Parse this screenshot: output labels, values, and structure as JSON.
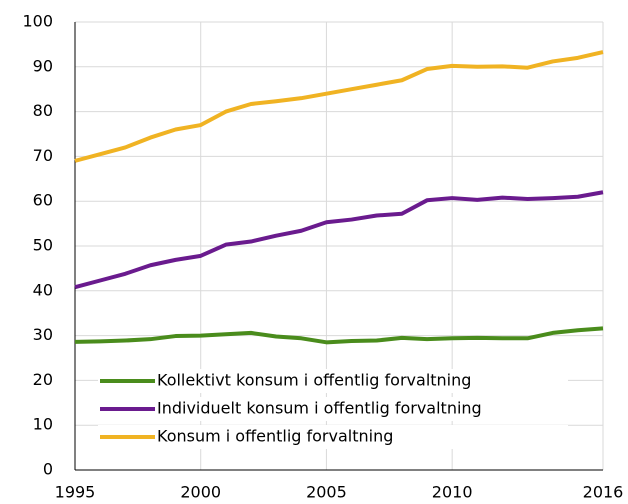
{
  "chart_data": {
    "type": "line",
    "x": [
      1995,
      1996,
      1997,
      1998,
      1999,
      2000,
      2001,
      2002,
      2003,
      2004,
      2005,
      2006,
      2007,
      2008,
      2009,
      2010,
      2011,
      2012,
      2013,
      2014,
      2015,
      2016
    ],
    "series": [
      {
        "name": "Kollektivt konsum i offentlig forvaltning",
        "color": "#4a8c1c",
        "values": [
          28.6,
          28.7,
          28.9,
          29.2,
          29.9,
          30,
          30.3,
          30.6,
          29.8,
          29.4,
          28.5,
          28.8,
          28.9,
          29.5,
          29.2,
          29.4,
          29.5,
          29.4,
          29.4,
          30.6,
          31.2,
          31.6
        ]
      },
      {
        "name": "Individuelt konsum i offentlig forvaltning",
        "color": "#6a1b8e",
        "values": [
          40.8,
          42.3,
          43.8,
          45.7,
          46.9,
          47.8,
          50.3,
          51,
          52.3,
          53.4,
          55.3,
          55.9,
          56.8,
          57.2,
          60.2,
          60.7,
          60.3,
          60.8,
          60.5,
          60.7,
          61,
          62
        ]
      },
      {
        "name": "Konsum i offentlig forvaltning",
        "color": "#f0b323",
        "values": [
          69,
          70.5,
          72,
          74.2,
          76,
          77,
          80,
          81.7,
          82.3,
          83,
          84,
          85,
          86,
          87,
          89.5,
          90.2,
          90,
          90.1,
          89.8,
          91.2,
          92,
          93.3
        ]
      }
    ],
    "xlim": [
      1995,
      2016
    ],
    "xticks": [
      1995,
      2000,
      2005,
      2010,
      2016
    ],
    "ylim": [
      0,
      100
    ],
    "yticks": [
      0,
      10,
      20,
      30,
      40,
      50,
      60,
      70,
      80,
      90,
      100
    ],
    "grid": true,
    "legend": "lower left"
  }
}
